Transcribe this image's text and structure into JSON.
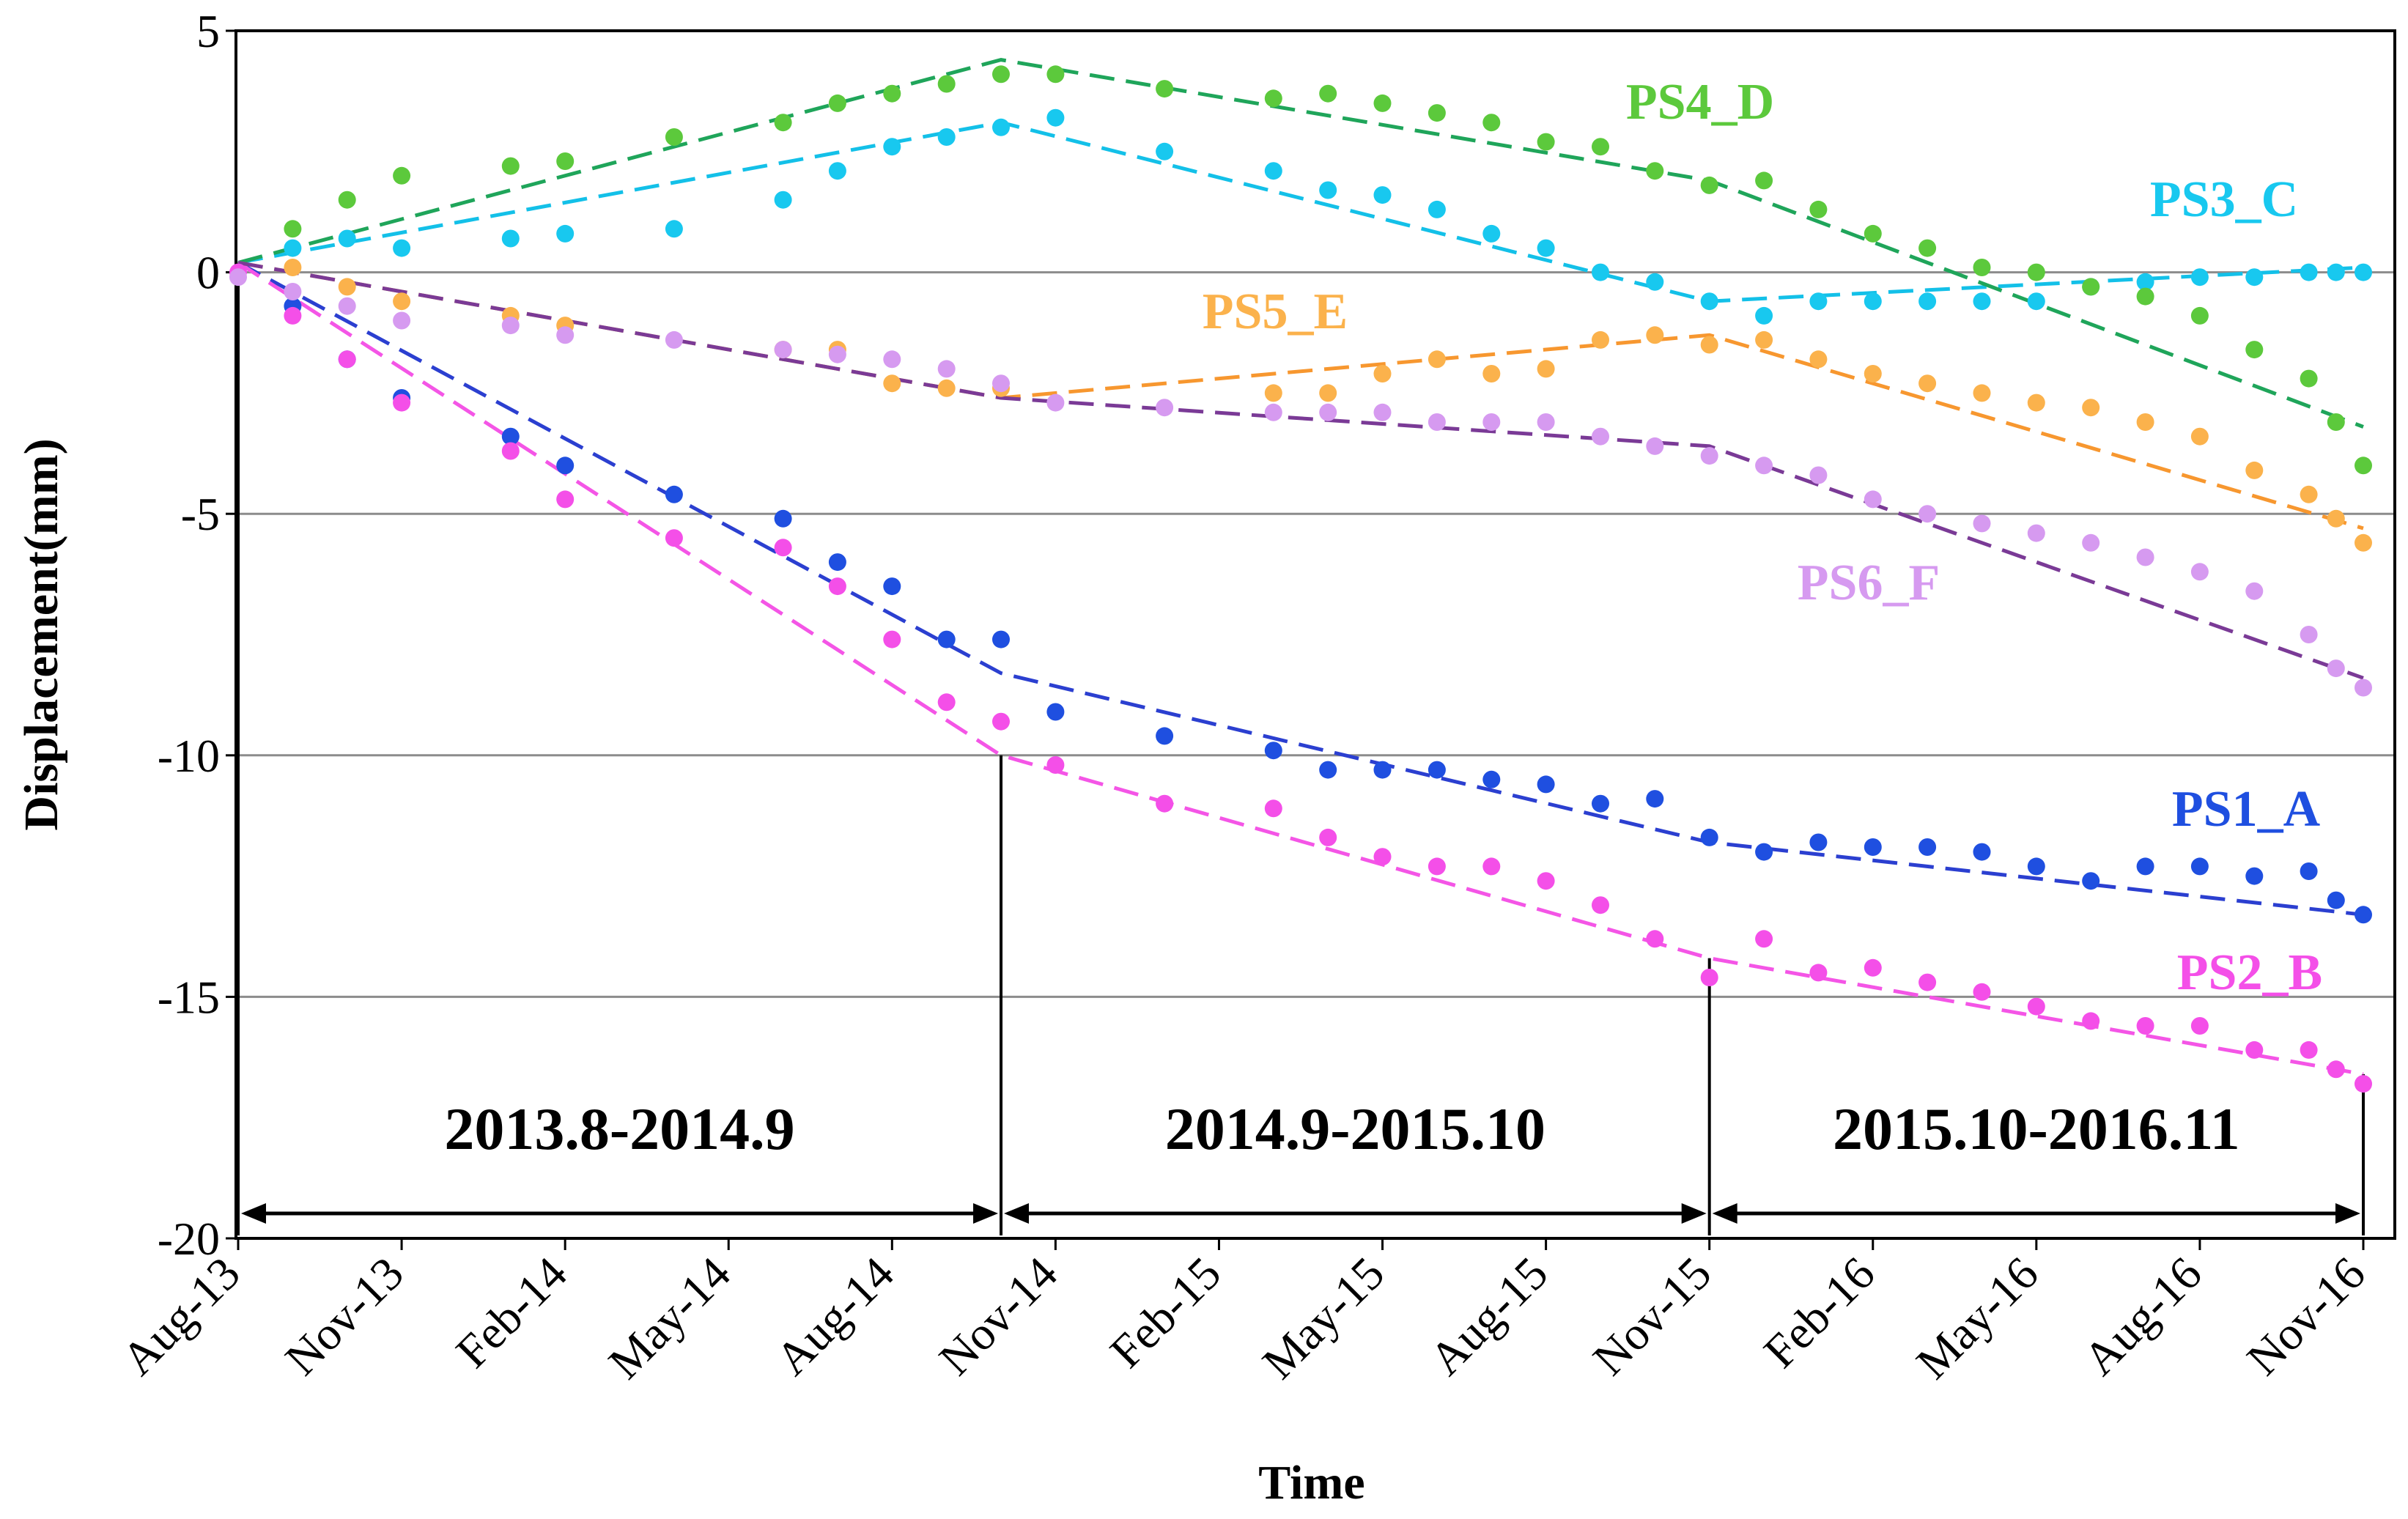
{
  "chart_data": {
    "type": "scatter",
    "xlabel": "Time",
    "ylabel": "Displacement(mm)",
    "ylim": [
      -20,
      5
    ],
    "yticks": [
      5,
      0,
      -5,
      -10,
      -15,
      -20
    ],
    "gridlines": [
      0,
      -5,
      -10,
      -15
    ],
    "xlim": [
      "2013-08",
      "2016-11"
    ],
    "x_ticks": [
      "Aug-13",
      "Nov-13",
      "Feb-14",
      "May-14",
      "Aug-14",
      "Nov-14",
      "Feb-15",
      "May-15",
      "Aug-15",
      "Nov-15",
      "Feb-16",
      "May-16",
      "Aug-16",
      "Nov-16"
    ],
    "x_tick_dates": [
      "2013-08",
      "2013-11",
      "2014-02",
      "2014-05",
      "2014-08",
      "2014-11",
      "2015-02",
      "2015-05",
      "2015-08",
      "2015-11",
      "2016-02",
      "2016-05",
      "2016-08",
      "2016-11"
    ],
    "periods": [
      {
        "label": "2013.8-2014.9",
        "start": "2013-08",
        "end": "2014-10"
      },
      {
        "label": "2014.9-2015.10",
        "start": "2014-10",
        "end": "2015-11"
      },
      {
        "label": "2015.10-2016.11",
        "start": "2015-11",
        "end": "2016-11"
      }
    ],
    "series": [
      {
        "name": "PS1_A",
        "color": "#1f4fe0",
        "points": [
          [
            "2013-09",
            -0.7
          ],
          [
            "2013-10",
            -1.8
          ],
          [
            "2013-11",
            -2.6
          ],
          [
            "2014-01",
            -3.4
          ],
          [
            "2014-02",
            -4.0
          ],
          [
            "2014-04",
            -4.6
          ],
          [
            "2014-06",
            -5.1
          ],
          [
            "2014-07",
            -6.0
          ],
          [
            "2014-08",
            -6.5
          ],
          [
            "2014-09",
            -7.6
          ],
          [
            "2014-10",
            -7.6
          ],
          [
            "2014-11",
            -9.1
          ],
          [
            "2015-01",
            -9.6
          ],
          [
            "2015-03",
            -9.9
          ],
          [
            "2015-04",
            -10.3
          ],
          [
            "2015-05",
            -10.3
          ],
          [
            "2015-06",
            -10.3
          ],
          [
            "2015-07",
            -10.5
          ],
          [
            "2015-08",
            -10.6
          ],
          [
            "2015-09",
            -11.0
          ],
          [
            "2015-10",
            -10.9
          ],
          [
            "2015-11",
            -11.7
          ],
          [
            "2015-12",
            -12.0
          ],
          [
            "2016-01",
            -11.8
          ],
          [
            "2016-02",
            -11.9
          ],
          [
            "2016-03",
            -11.9
          ],
          [
            "2016-04",
            -12.0
          ],
          [
            "2016-05",
            -12.3
          ],
          [
            "2016-06",
            -12.6
          ],
          [
            "2016-07",
            -12.3
          ],
          [
            "2016-08",
            -12.3
          ],
          [
            "2016-09",
            -12.5
          ],
          [
            "2016-10",
            -12.4
          ],
          [
            "2016-10b",
            -13.0
          ],
          [
            "2016-11",
            -13.3
          ]
        ],
        "trend": [
          [
            "2013-08",
            0.2
          ],
          [
            "2014-10",
            -8.3
          ],
          [
            "2015-11",
            -11.8
          ],
          [
            "2016-11",
            -13.3
          ]
        ]
      },
      {
        "name": "PS2_B",
        "color": "#f44fe8",
        "points": [
          [
            "2013-08",
            0.0
          ],
          [
            "2013-09",
            -0.9
          ],
          [
            "2013-10",
            -1.8
          ],
          [
            "2013-11",
            -2.7
          ],
          [
            "2014-01",
            -3.7
          ],
          [
            "2014-02",
            -4.7
          ],
          [
            "2014-04",
            -5.5
          ],
          [
            "2014-06",
            -5.7
          ],
          [
            "2014-07",
            -6.5
          ],
          [
            "2014-08",
            -7.6
          ],
          [
            "2014-09",
            -8.9
          ],
          [
            "2014-10",
            -9.3
          ],
          [
            "2014-11",
            -10.2
          ],
          [
            "2015-01",
            -11.0
          ],
          [
            "2015-03",
            -11.1
          ],
          [
            "2015-04",
            -11.7
          ],
          [
            "2015-05",
            -12.1
          ],
          [
            "2015-06",
            -12.3
          ],
          [
            "2015-07",
            -12.3
          ],
          [
            "2015-08",
            -12.6
          ],
          [
            "2015-09",
            -13.1
          ],
          [
            "2015-10",
            -13.8
          ],
          [
            "2015-11",
            -14.6
          ],
          [
            "2015-12",
            -13.8
          ],
          [
            "2016-01",
            -14.5
          ],
          [
            "2016-02",
            -14.4
          ],
          [
            "2016-03",
            -14.7
          ],
          [
            "2016-04",
            -14.9
          ],
          [
            "2016-05",
            -15.2
          ],
          [
            "2016-06",
            -15.5
          ],
          [
            "2016-07",
            -15.6
          ],
          [
            "2016-08",
            -15.6
          ],
          [
            "2016-09",
            -16.1
          ],
          [
            "2016-10",
            -16.1
          ],
          [
            "2016-10b",
            -16.5
          ],
          [
            "2016-11",
            -16.8
          ]
        ],
        "trend": [
          [
            "2013-08",
            0.2
          ],
          [
            "2014-10",
            -10.0
          ],
          [
            "2015-11",
            -14.2
          ],
          [
            "2016-11",
            -16.6
          ]
        ]
      },
      {
        "name": "PS3_C",
        "color": "#18c8ef",
        "points": [
          [
            "2013-09",
            0.5
          ],
          [
            "2013-10",
            0.7
          ],
          [
            "2013-11",
            0.5
          ],
          [
            "2014-01",
            0.7
          ],
          [
            "2014-02",
            0.8
          ],
          [
            "2014-04",
            0.9
          ],
          [
            "2014-06",
            1.5
          ],
          [
            "2014-07",
            2.1
          ],
          [
            "2014-08",
            2.6
          ],
          [
            "2014-09",
            2.8
          ],
          [
            "2014-10",
            3.0
          ],
          [
            "2014-11",
            3.2
          ],
          [
            "2015-01",
            2.5
          ],
          [
            "2015-03",
            2.1
          ],
          [
            "2015-04",
            1.7
          ],
          [
            "2015-05",
            1.6
          ],
          [
            "2015-06",
            1.3
          ],
          [
            "2015-07",
            0.8
          ],
          [
            "2015-08",
            0.5
          ],
          [
            "2015-09",
            0.0
          ],
          [
            "2015-10",
            -0.2
          ],
          [
            "2015-11",
            -0.6
          ],
          [
            "2015-12",
            -0.9
          ],
          [
            "2016-01",
            -0.6
          ],
          [
            "2016-02",
            -0.6
          ],
          [
            "2016-03",
            -0.6
          ],
          [
            "2016-04",
            -0.6
          ],
          [
            "2016-05",
            -0.6
          ],
          [
            "2016-06",
            -0.3
          ],
          [
            "2016-07",
            -0.2
          ],
          [
            "2016-08",
            -0.1
          ],
          [
            "2016-09",
            -0.1
          ],
          [
            "2016-10",
            0.0
          ],
          [
            "2016-10b",
            0.0
          ],
          [
            "2016-11",
            0.0
          ]
        ],
        "trend": [
          [
            "2013-08",
            0.2
          ],
          [
            "2014-10",
            3.1
          ],
          [
            "2015-11",
            -0.6
          ],
          [
            "2016-11",
            0.1
          ]
        ]
      },
      {
        "name": "PS4_D",
        "color": "#5cc93c",
        "points": [
          [
            "2013-09",
            0.9
          ],
          [
            "2013-10",
            1.5
          ],
          [
            "2013-11",
            2.0
          ],
          [
            "2014-01",
            2.2
          ],
          [
            "2014-02",
            2.3
          ],
          [
            "2014-04",
            2.8
          ],
          [
            "2014-06",
            3.1
          ],
          [
            "2014-07",
            3.5
          ],
          [
            "2014-08",
            3.7
          ],
          [
            "2014-09",
            3.9
          ],
          [
            "2014-10",
            4.1
          ],
          [
            "2014-11",
            4.1
          ],
          [
            "2015-01",
            3.8
          ],
          [
            "2015-03",
            3.6
          ],
          [
            "2015-04",
            3.7
          ],
          [
            "2015-05",
            3.5
          ],
          [
            "2015-06",
            3.3
          ],
          [
            "2015-07",
            3.1
          ],
          [
            "2015-08",
            2.7
          ],
          [
            "2015-09",
            2.6
          ],
          [
            "2015-10",
            2.1
          ],
          [
            "2015-11",
            1.8
          ],
          [
            "2015-12",
            1.9
          ],
          [
            "2016-01",
            1.3
          ],
          [
            "2016-02",
            0.8
          ],
          [
            "2016-03",
            0.5
          ],
          [
            "2016-04",
            0.1
          ],
          [
            "2016-05",
            0.0
          ],
          [
            "2016-06",
            -0.3
          ],
          [
            "2016-07",
            -0.5
          ],
          [
            "2016-08",
            -0.9
          ],
          [
            "2016-09",
            -1.6
          ],
          [
            "2016-10",
            -2.2
          ],
          [
            "2016-10b",
            -3.1
          ],
          [
            "2016-11",
            -4.0
          ]
        ],
        "trend": [
          [
            "2013-08",
            0.2
          ],
          [
            "2014-10",
            4.4
          ],
          [
            "2015-11",
            1.9
          ],
          [
            "2016-11",
            -3.2
          ]
        ]
      },
      {
        "name": "PS5_E",
        "color": "#fbb24c",
        "points": [
          [
            "2013-09",
            0.1
          ],
          [
            "2013-10",
            -0.3
          ],
          [
            "2013-11",
            -0.6
          ],
          [
            "2014-01",
            -0.9
          ],
          [
            "2014-02",
            -1.1
          ],
          [
            "2014-06",
            -1.6
          ],
          [
            "2014-07",
            -1.6
          ],
          [
            "2014-08",
            -2.3
          ],
          [
            "2014-09",
            -2.4
          ],
          [
            "2014-10",
            -2.4
          ],
          [
            "2015-03",
            -2.5
          ],
          [
            "2015-04",
            -2.5
          ],
          [
            "2015-05",
            -2.1
          ],
          [
            "2015-06",
            -1.8
          ],
          [
            "2015-07",
            -2.1
          ],
          [
            "2015-08",
            -2.0
          ],
          [
            "2015-09",
            -1.4
          ],
          [
            "2015-10",
            -1.3
          ],
          [
            "2015-11",
            -1.5
          ],
          [
            "2015-12",
            -1.4
          ],
          [
            "2016-01",
            -1.8
          ],
          [
            "2016-02",
            -2.1
          ],
          [
            "2016-03",
            -2.3
          ],
          [
            "2016-04",
            -2.5
          ],
          [
            "2016-05",
            -2.7
          ],
          [
            "2016-06",
            -2.8
          ],
          [
            "2016-07",
            -3.1
          ],
          [
            "2016-08",
            -3.4
          ],
          [
            "2016-09",
            -4.1
          ],
          [
            "2016-10",
            -4.6
          ],
          [
            "2016-10b",
            -5.1
          ],
          [
            "2016-11",
            -5.6
          ]
        ],
        "trend": [
          [
            "2013-08",
            0.2
          ],
          [
            "2014-10",
            -2.6
          ],
          [
            "2015-11",
            -1.3
          ],
          [
            "2016-11",
            -5.3
          ]
        ]
      },
      {
        "name": "PS6_F",
        "color": "#d69af0",
        "points": [
          [
            "2013-08",
            -0.1
          ],
          [
            "2013-09",
            -0.4
          ],
          [
            "2013-10",
            -0.7
          ],
          [
            "2013-11",
            -1.0
          ],
          [
            "2014-01",
            -1.1
          ],
          [
            "2014-02",
            -1.3
          ],
          [
            "2014-04",
            -1.4
          ],
          [
            "2014-06",
            -1.6
          ],
          [
            "2014-07",
            -1.7
          ],
          [
            "2014-08",
            -1.8
          ],
          [
            "2014-09",
            -2.0
          ],
          [
            "2014-10",
            -2.3
          ],
          [
            "2014-11",
            -2.7
          ],
          [
            "2015-01",
            -2.8
          ],
          [
            "2015-03",
            -2.9
          ],
          [
            "2015-04",
            -2.9
          ],
          [
            "2015-05",
            -2.9
          ],
          [
            "2015-06",
            -3.1
          ],
          [
            "2015-07",
            -3.1
          ],
          [
            "2015-08",
            -3.1
          ],
          [
            "2015-09",
            -3.4
          ],
          [
            "2015-10",
            -3.6
          ],
          [
            "2015-11",
            -3.8
          ],
          [
            "2015-12",
            -4.0
          ],
          [
            "2016-01",
            -4.2
          ],
          [
            "2016-02",
            -4.7
          ],
          [
            "2016-03",
            -5.0
          ],
          [
            "2016-04",
            -5.2
          ],
          [
            "2016-05",
            -5.4
          ],
          [
            "2016-06",
            -5.6
          ],
          [
            "2016-07",
            -5.9
          ],
          [
            "2016-08",
            -6.2
          ],
          [
            "2016-09",
            -6.6
          ],
          [
            "2016-10",
            -7.5
          ],
          [
            "2016-10b",
            -8.2
          ],
          [
            "2016-11",
            -8.6
          ]
        ],
        "trend": [
          [
            "2013-08",
            0.2
          ],
          [
            "2014-10",
            -2.6
          ],
          [
            "2015-11",
            -3.6
          ],
          [
            "2016-11",
            -8.4
          ]
        ]
      }
    ],
    "labels": [
      {
        "name": "PS4_D",
        "color": "#5cc93c"
      },
      {
        "name": "PS3_C",
        "color": "#18c8ef"
      },
      {
        "name": "PS5_E",
        "color": "#fbb24c"
      },
      {
        "name": "PS6_F",
        "color": "#d69af0"
      },
      {
        "name": "PS1_A",
        "color": "#1f4fe0"
      },
      {
        "name": "PS2_B",
        "color": "#f44fe8"
      }
    ],
    "trend_colors": {
      "PS1_A": "#2b3fd0",
      "PS2_B": "#f455e6",
      "PS3_C": "#13c0e8",
      "PS4_D": "#1fa55a",
      "PS5_E": "#f7972f",
      "PS6_F": "#7a3a96"
    }
  }
}
